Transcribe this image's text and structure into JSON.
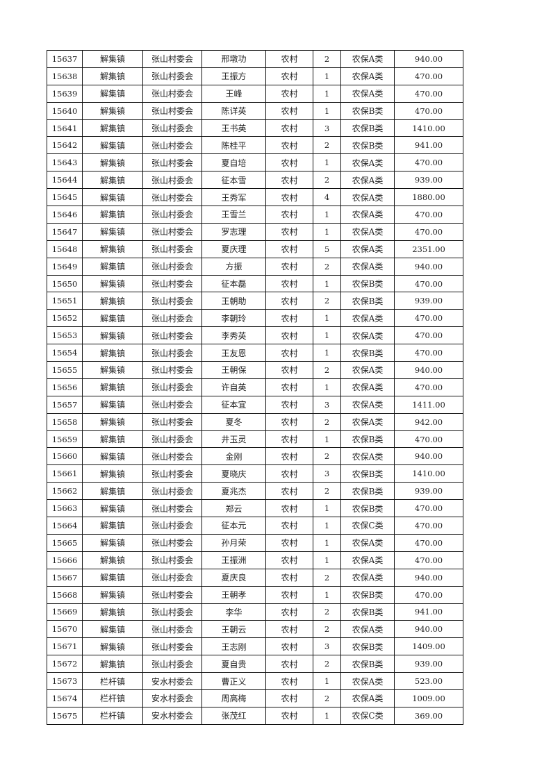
{
  "rows": [
    [
      "15637",
      "解集镇",
      "张山村委会",
      "邢墩功",
      "农村",
      "2",
      "农保A类",
      "940.00"
    ],
    [
      "15638",
      "解集镇",
      "张山村委会",
      "王振方",
      "农村",
      "1",
      "农保A类",
      "470.00"
    ],
    [
      "15639",
      "解集镇",
      "张山村委会",
      "王峰",
      "农村",
      "1",
      "农保A类",
      "470.00"
    ],
    [
      "15640",
      "解集镇",
      "张山村委会",
      "陈详英",
      "农村",
      "1",
      "农保B类",
      "470.00"
    ],
    [
      "15641",
      "解集镇",
      "张山村委会",
      "王书英",
      "农村",
      "3",
      "农保B类",
      "1410.00"
    ],
    [
      "15642",
      "解集镇",
      "张山村委会",
      "陈桂平",
      "农村",
      "2",
      "农保B类",
      "941.00"
    ],
    [
      "15643",
      "解集镇",
      "张山村委会",
      "夏自培",
      "农村",
      "1",
      "农保A类",
      "470.00"
    ],
    [
      "15644",
      "解集镇",
      "张山村委会",
      "征本雪",
      "农村",
      "2",
      "农保A类",
      "939.00"
    ],
    [
      "15645",
      "解集镇",
      "张山村委会",
      "王秀军",
      "农村",
      "4",
      "农保A类",
      "1880.00"
    ],
    [
      "15646",
      "解集镇",
      "张山村委会",
      "王雪兰",
      "农村",
      "1",
      "农保A类",
      "470.00"
    ],
    [
      "15647",
      "解集镇",
      "张山村委会",
      "罗志理",
      "农村",
      "1",
      "农保A类",
      "470.00"
    ],
    [
      "15648",
      "解集镇",
      "张山村委会",
      "夏庆理",
      "农村",
      "5",
      "农保A类",
      "2351.00"
    ],
    [
      "15649",
      "解集镇",
      "张山村委会",
      "方振",
      "农村",
      "2",
      "农保A类",
      "940.00"
    ],
    [
      "15650",
      "解集镇",
      "张山村委会",
      "征本磊",
      "农村",
      "1",
      "农保B类",
      "470.00"
    ],
    [
      "15651",
      "解集镇",
      "张山村委会",
      "王朝助",
      "农村",
      "2",
      "农保B类",
      "939.00"
    ],
    [
      "15652",
      "解集镇",
      "张山村委会",
      "李朝玲",
      "农村",
      "1",
      "农保A类",
      "470.00"
    ],
    [
      "15653",
      "解集镇",
      "张山村委会",
      "李秀英",
      "农村",
      "1",
      "农保A类",
      "470.00"
    ],
    [
      "15654",
      "解集镇",
      "张山村委会",
      "王友恩",
      "农村",
      "1",
      "农保B类",
      "470.00"
    ],
    [
      "15655",
      "解集镇",
      "张山村委会",
      "王朝保",
      "农村",
      "2",
      "农保A类",
      "940.00"
    ],
    [
      "15656",
      "解集镇",
      "张山村委会",
      "许自英",
      "农村",
      "1",
      "农保A类",
      "470.00"
    ],
    [
      "15657",
      "解集镇",
      "张山村委会",
      "征本宜",
      "农村",
      "3",
      "农保A类",
      "1411.00"
    ],
    [
      "15658",
      "解集镇",
      "张山村委会",
      "夏冬",
      "农村",
      "2",
      "农保A类",
      "942.00"
    ],
    [
      "15659",
      "解集镇",
      "张山村委会",
      "井玉灵",
      "农村",
      "1",
      "农保B类",
      "470.00"
    ],
    [
      "15660",
      "解集镇",
      "张山村委会",
      "金刚",
      "农村",
      "2",
      "农保A类",
      "940.00"
    ],
    [
      "15661",
      "解集镇",
      "张山村委会",
      "夏晓庆",
      "农村",
      "3",
      "农保B类",
      "1410.00"
    ],
    [
      "15662",
      "解集镇",
      "张山村委会",
      "夏兆杰",
      "农村",
      "2",
      "农保B类",
      "939.00"
    ],
    [
      "15663",
      "解集镇",
      "张山村委会",
      "郑云",
      "农村",
      "1",
      "农保B类",
      "470.00"
    ],
    [
      "15664",
      "解集镇",
      "张山村委会",
      "征本元",
      "农村",
      "1",
      "农保C类",
      "470.00"
    ],
    [
      "15665",
      "解集镇",
      "张山村委会",
      "孙月荣",
      "农村",
      "1",
      "农保A类",
      "470.00"
    ],
    [
      "15666",
      "解集镇",
      "张山村委会",
      "王振洲",
      "农村",
      "1",
      "农保A类",
      "470.00"
    ],
    [
      "15667",
      "解集镇",
      "张山村委会",
      "夏庆良",
      "农村",
      "2",
      "农保A类",
      "940.00"
    ],
    [
      "15668",
      "解集镇",
      "张山村委会",
      "王朝孝",
      "农村",
      "1",
      "农保B类",
      "470.00"
    ],
    [
      "15669",
      "解集镇",
      "张山村委会",
      "李华",
      "农村",
      "2",
      "农保B类",
      "941.00"
    ],
    [
      "15670",
      "解集镇",
      "张山村委会",
      "王朝云",
      "农村",
      "2",
      "农保A类",
      "940.00"
    ],
    [
      "15671",
      "解集镇",
      "张山村委会",
      "王志刚",
      "农村",
      "3",
      "农保B类",
      "1409.00"
    ],
    [
      "15672",
      "解集镇",
      "张山村委会",
      "夏自贵",
      "农村",
      "2",
      "农保B类",
      "939.00"
    ],
    [
      "15673",
      "栏杆镇",
      "安水村委会",
      "曹正义",
      "农村",
      "1",
      "农保A类",
      "523.00"
    ],
    [
      "15674",
      "栏杆镇",
      "安水村委会",
      "周高梅",
      "农村",
      "2",
      "农保A类",
      "1009.00"
    ],
    [
      "15675",
      "栏杆镇",
      "安水村委会",
      "张茂红",
      "农村",
      "1",
      "农保C类",
      "369.00"
    ]
  ]
}
